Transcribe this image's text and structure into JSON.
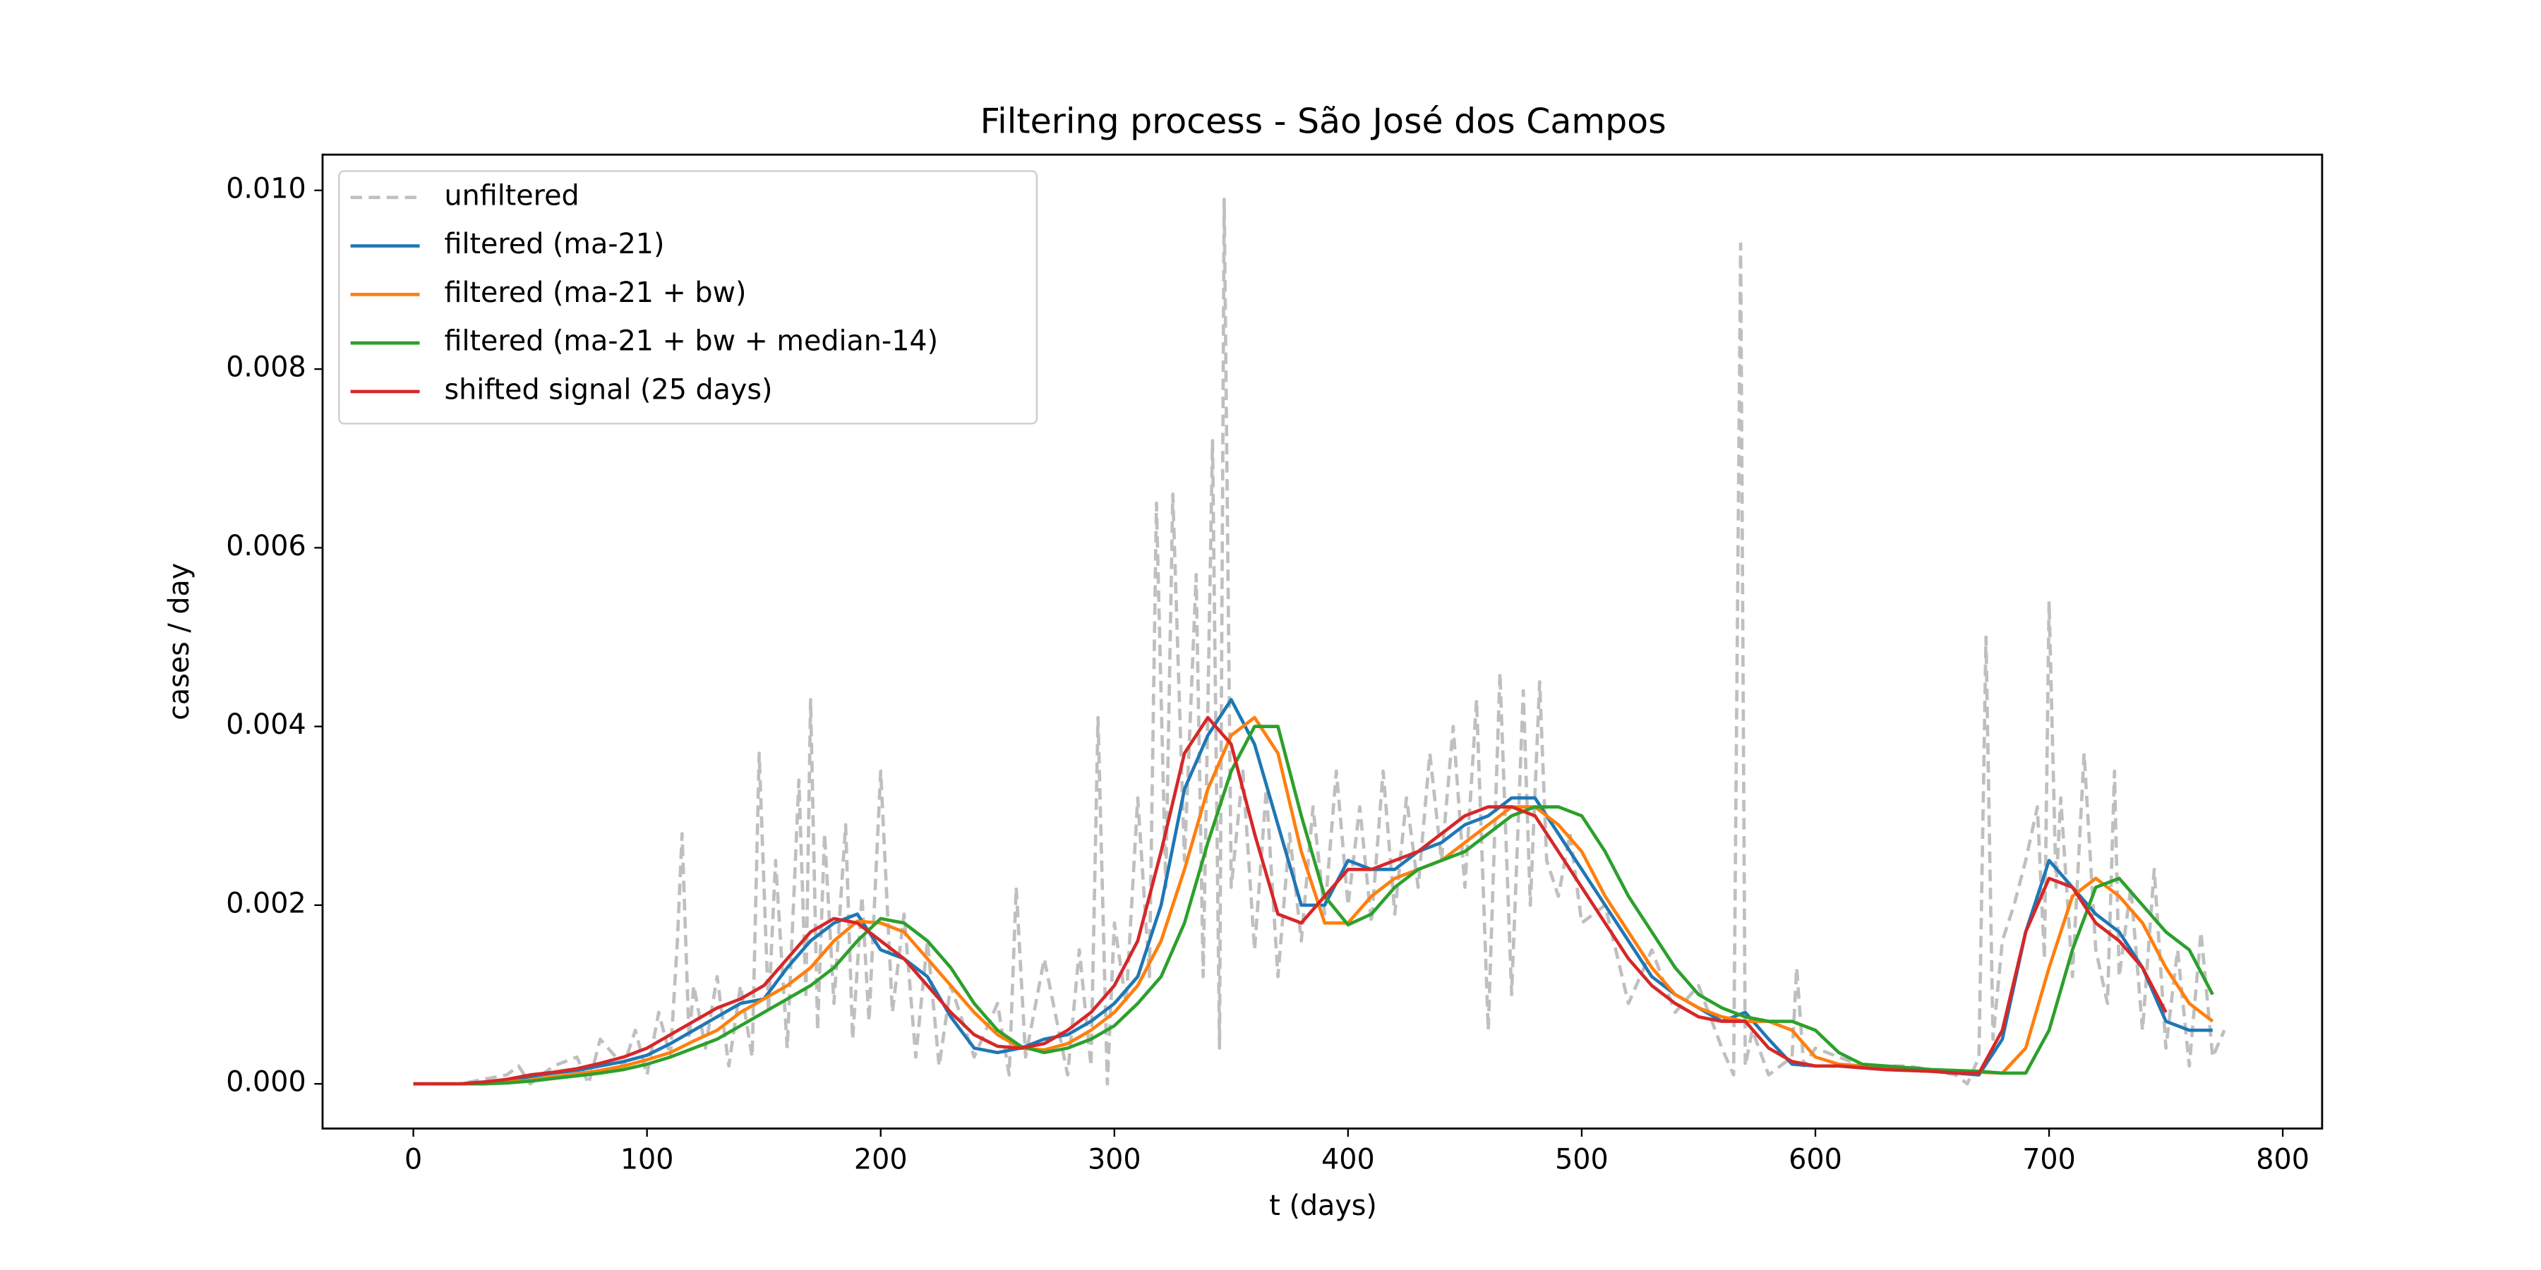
{
  "chart_data": {
    "type": "line",
    "title": "Filtering process - São José dos Campos",
    "x_label": "t (days)",
    "y_label": "cases / day",
    "xlim": [
      -38.85,
      816.85
    ],
    "ylim": [
      -0.0005,
      0.0104
    ],
    "xticks": [
      0,
      100,
      200,
      300,
      400,
      500,
      600,
      700,
      800
    ],
    "yticks": [
      {
        "value": 0,
        "label": "0.000"
      },
      {
        "value": 0.002,
        "label": "0.002"
      },
      {
        "value": 0.004,
        "label": "0.004"
      },
      {
        "value": 0.006,
        "label": "0.006"
      },
      {
        "value": 0.008,
        "label": "0.008"
      },
      {
        "value": 0.01,
        "label": "0.010"
      }
    ],
    "grid": false,
    "legend": "upper left",
    "x": [
      0,
      10,
      20,
      30,
      40,
      50,
      60,
      70,
      80,
      90,
      100,
      110,
      120,
      130,
      140,
      150,
      160,
      170,
      180,
      190,
      200,
      210,
      220,
      230,
      240,
      250,
      260,
      270,
      280,
      290,
      300,
      310,
      320,
      330,
      340,
      350,
      360,
      370,
      380,
      390,
      400,
      410,
      420,
      430,
      440,
      450,
      460,
      470,
      480,
      490,
      500,
      510,
      520,
      530,
      540,
      550,
      560,
      570,
      580,
      590,
      600,
      610,
      620,
      630,
      640,
      650,
      660,
      670,
      680,
      690,
      700,
      710,
      720,
      730,
      740,
      750,
      760,
      770
    ],
    "series": [
      {
        "name": "unfiltered",
        "color": "#bfbfbf",
        "linestyle": "dashed",
        "x": [
          0,
          20,
          40,
          45,
          50,
          60,
          70,
          75,
          80,
          90,
          95,
          100,
          105,
          110,
          113,
          115,
          118,
          120,
          125,
          130,
          135,
          140,
          145,
          148,
          152,
          155,
          160,
          165,
          168,
          170,
          173,
          176,
          180,
          185,
          188,
          192,
          195,
          200,
          205,
          210,
          215,
          220,
          225,
          230,
          240,
          250,
          255,
          258,
          262,
          270,
          280,
          285,
          290,
          293,
          297,
          300,
          305,
          310,
          315,
          318,
          322,
          325,
          330,
          335,
          338,
          342,
          345,
          347,
          350,
          355,
          360,
          365,
          370,
          375,
          380,
          385,
          390,
          395,
          400,
          405,
          410,
          415,
          420,
          425,
          430,
          435,
          440,
          445,
          450,
          455,
          460,
          465,
          470,
          475,
          478,
          482,
          485,
          490,
          495,
          500,
          510,
          520,
          530,
          540,
          550,
          560,
          565,
          568,
          570,
          573,
          580,
          590,
          592,
          595,
          600,
          620,
          640,
          660,
          665,
          670,
          673,
          676,
          680,
          685,
          690,
          695,
          698,
          700,
          703,
          705,
          710,
          715,
          720,
          725,
          728,
          730,
          735,
          740,
          745,
          750,
          755,
          760,
          765,
          770,
          775
        ],
        "values": [
          0,
          0,
          0.0001,
          0.0002,
          0,
          0.0002,
          0.0003,
          0,
          0.0005,
          0.0002,
          0.0006,
          0.0001,
          0.0008,
          0.0003,
          0.0016,
          0.0028,
          0.0005,
          0.0011,
          0.0004,
          0.0012,
          0.0002,
          0.0011,
          0.0003,
          0.0037,
          0.0008,
          0.0025,
          0.0004,
          0.0034,
          0.001,
          0.0043,
          0.0006,
          0.0028,
          0.0009,
          0.0029,
          0.0005,
          0.0021,
          0.0007,
          0.0035,
          0.0008,
          0.0019,
          0.0003,
          0.0016,
          0.0002,
          0.0011,
          0.0003,
          0.0009,
          0.0001,
          0.0022,
          0.0003,
          0.0014,
          0.0001,
          0.0015,
          0.0002,
          0.0041,
          0,
          0.0018,
          0.0009,
          0.0032,
          0.0012,
          0.0065,
          0.0022,
          0.0066,
          0.0025,
          0.0057,
          0.0012,
          0.0072,
          0.0004,
          0.0099,
          0.0022,
          0.0035,
          0.0015,
          0.0033,
          0.0012,
          0.0028,
          0.0016,
          0.0031,
          0.0019,
          0.0035,
          0.002,
          0.0031,
          0.0018,
          0.0035,
          0.0019,
          0.0032,
          0.0022,
          0.0037,
          0.0025,
          0.004,
          0.0022,
          0.0043,
          0.0006,
          0.0046,
          0.001,
          0.0044,
          0.002,
          0.0045,
          0.0025,
          0.0021,
          0.0028,
          0.0018,
          0.002,
          0.0009,
          0.0015,
          0.0008,
          0.0011,
          0.0004,
          0.0001,
          0.0094,
          0.0002,
          0.0006,
          0.0001,
          0.0003,
          0.0013,
          0.0002,
          0.0004,
          0.0002,
          0.0002,
          0.0001,
          0,
          0.0003,
          0.005,
          0.0005,
          0.0016,
          0.002,
          0.0025,
          0.0031,
          0.0014,
          0.0054,
          0.0022,
          0.0032,
          0.0012,
          0.0037,
          0.0015,
          0.0009,
          0.0035,
          0.0012,
          0.0022,
          0.0006,
          0.0024,
          0.0004,
          0.0015,
          0.0002,
          0.0017,
          0.0003,
          0.0006
        ]
      },
      {
        "name": "filtered (ma-21)",
        "color": "#1f77b4",
        "values": [
          0,
          0,
          0,
          2e-05,
          4e-05,
          8e-05,
          0.00012,
          0.00015,
          0.0002,
          0.00025,
          0.00032,
          0.00045,
          0.0006,
          0.00075,
          0.0009,
          0.00095,
          0.0013,
          0.0016,
          0.0018,
          0.0019,
          0.0015,
          0.0014,
          0.0012,
          0.00075,
          0.0004,
          0.00035,
          0.0004,
          0.0005,
          0.00055,
          0.0007,
          0.0009,
          0.0012,
          0.002,
          0.0033,
          0.0039,
          0.0043,
          0.0038,
          0.0029,
          0.002,
          0.002,
          0.0025,
          0.0024,
          0.0024,
          0.0026,
          0.0027,
          0.0029,
          0.003,
          0.0032,
          0.0032,
          0.0028,
          0.0024,
          0.002,
          0.0016,
          0.0012,
          0.001,
          0.00085,
          0.0007,
          0.0008,
          0.0005,
          0.00022,
          0.0002,
          0.0002,
          0.00018,
          0.00016,
          0.00015,
          0.00014,
          0.00012,
          0.0001,
          0.0005,
          0.0017,
          0.0025,
          0.0022,
          0.0019,
          0.0017,
          0.0013,
          0.0007,
          0.0006,
          0.0006
        ]
      },
      {
        "name": "filtered (ma-21 + bw)",
        "color": "#ff7f0e",
        "values": [
          0,
          0,
          0,
          0,
          2e-05,
          4e-05,
          8e-05,
          0.00011,
          0.00015,
          0.0002,
          0.00027,
          0.00035,
          0.00048,
          0.0006,
          0.0008,
          0.00095,
          0.0011,
          0.0013,
          0.0016,
          0.00182,
          0.0018,
          0.0017,
          0.0014,
          0.0011,
          0.0008,
          0.00055,
          0.0004,
          0.00038,
          0.00045,
          0.0006,
          0.0008,
          0.0011,
          0.0016,
          0.0024,
          0.0033,
          0.0039,
          0.0041,
          0.0037,
          0.0026,
          0.0018,
          0.0018,
          0.0021,
          0.0023,
          0.0024,
          0.0025,
          0.0027,
          0.0029,
          0.0031,
          0.0031,
          0.0029,
          0.0026,
          0.0021,
          0.0017,
          0.0013,
          0.001,
          0.00085,
          0.00075,
          0.0007,
          0.0007,
          0.0006,
          0.0003,
          0.00022,
          0.0002,
          0.00018,
          0.00016,
          0.00015,
          0.00014,
          0.00013,
          0.00012,
          0.0004,
          0.0013,
          0.0021,
          0.0023,
          0.0021,
          0.0018,
          0.0013,
          0.0009,
          0.0007
        ]
      },
      {
        "name": "filtered (ma-21 + bw + median-14)",
        "color": "#2ca02c",
        "values": [
          0,
          0,
          0,
          0,
          1e-05,
          3e-05,
          6e-05,
          9e-05,
          0.00012,
          0.00016,
          0.00022,
          0.0003,
          0.0004,
          0.0005,
          0.00065,
          0.0008,
          0.00095,
          0.0011,
          0.0013,
          0.0016,
          0.00185,
          0.0018,
          0.0016,
          0.0013,
          0.0009,
          0.0006,
          0.00042,
          0.00035,
          0.0004,
          0.0005,
          0.00065,
          0.0009,
          0.0012,
          0.0018,
          0.0027,
          0.0035,
          0.004,
          0.004,
          0.003,
          0.0021,
          0.00178,
          0.0019,
          0.0022,
          0.0024,
          0.0025,
          0.0026,
          0.0028,
          0.003,
          0.0031,
          0.0031,
          0.003,
          0.0026,
          0.0021,
          0.0017,
          0.0013,
          0.001,
          0.00085,
          0.00075,
          0.0007,
          0.0007,
          0.0006,
          0.00035,
          0.00022,
          0.0002,
          0.00018,
          0.00016,
          0.00015,
          0.00014,
          0.00012,
          0.00012,
          0.0006,
          0.0015,
          0.0022,
          0.0023,
          0.002,
          0.0017,
          0.0015,
          0.001
        ]
      },
      {
        "name": "shifted signal (25 days)",
        "color": "#d62728",
        "values": [
          0,
          0,
          0,
          2e-05,
          5e-05,
          0.0001,
          0.00013,
          0.00017,
          0.00023,
          0.0003,
          0.0004,
          0.00055,
          0.0007,
          0.00085,
          0.00095,
          0.0011,
          0.0014,
          0.0017,
          0.00185,
          0.0018,
          0.0016,
          0.0014,
          0.0011,
          0.0008,
          0.00055,
          0.00042,
          0.0004,
          0.00045,
          0.0006,
          0.0008,
          0.0011,
          0.0016,
          0.0026,
          0.0037,
          0.0041,
          0.0038,
          0.0028,
          0.0019,
          0.0018,
          0.0021,
          0.0024,
          0.0024,
          0.0025,
          0.0026,
          0.0028,
          0.003,
          0.0031,
          0.0031,
          0.003,
          0.0026,
          0.0022,
          0.0018,
          0.0014,
          0.0011,
          0.0009,
          0.00075,
          0.0007,
          0.0007,
          0.0004,
          0.00025,
          0.0002,
          0.0002,
          0.00018,
          0.00016,
          0.00015,
          0.00014,
          0.00012,
          0.00012,
          0.0006,
          0.0017,
          0.0023,
          0.0022,
          0.0018,
          0.0016,
          0.0013,
          0.0008,
          null,
          null
        ]
      }
    ]
  }
}
